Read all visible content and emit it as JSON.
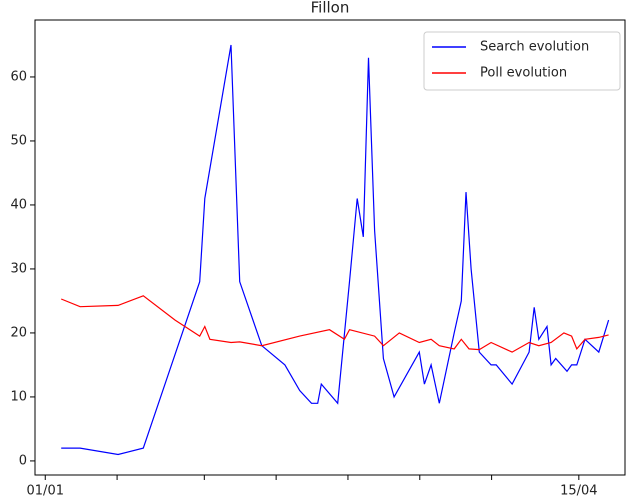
{
  "chart_data": {
    "type": "line",
    "title": "Fillon",
    "legend": "upper right",
    "xlim": [
      -2,
      113
    ],
    "ylim": [
      -2.2,
      68.9
    ],
    "xticks": [
      {
        "value": 0,
        "label": "01/01"
      },
      {
        "value": 14,
        "label": null
      },
      {
        "value": 31,
        "label": null
      },
      {
        "value": 45,
        "label": null
      },
      {
        "value": 59,
        "label": null
      },
      {
        "value": 73,
        "label": null
      },
      {
        "value": 87,
        "label": null
      },
      {
        "value": 104,
        "label": "15/04"
      }
    ],
    "yticks": [
      0,
      10,
      20,
      30,
      40,
      50,
      60
    ],
    "series": [
      {
        "name": "Search evolution",
        "color": "#0000ff",
        "x": [
          3.1,
          6.8,
          14.2,
          19.1,
          30.1,
          31.1,
          36.2,
          37.9,
          42.2,
          46.7,
          49.6,
          51.9,
          53.1,
          53.8,
          57.0,
          59.3,
          60.8,
          62.0,
          63.0,
          64.2,
          65.9,
          68.0,
          72.9,
          73.9,
          75.2,
          76.8,
          79.7,
          81.1,
          82.0,
          83.0,
          84.6,
          86.9,
          87.9,
          91.0,
          94.3,
          95.3,
          96.2,
          97.8,
          98.6,
          99.5,
          101.7,
          102.6,
          103.6,
          105.2,
          107.9,
          109.8
        ],
        "values": [
          2,
          2,
          1,
          2,
          28,
          41,
          65,
          28,
          18,
          15,
          11,
          9,
          9,
          12,
          9,
          28,
          41,
          35,
          63,
          36,
          16,
          10,
          17,
          12,
          15,
          9,
          20,
          25,
          42,
          30,
          17,
          15,
          15,
          12,
          17,
          24,
          19,
          21,
          15,
          16,
          14,
          15,
          15,
          19,
          17,
          22
        ]
      },
      {
        "name": "Poll evolution",
        "color": "#ff0000",
        "x": [
          3.1,
          6.8,
          14.2,
          19.1,
          25.3,
          30.1,
          31.1,
          32.1,
          36.2,
          37.9,
          42.2,
          49.6,
          55.4,
          58.3,
          59.3,
          64.2,
          65.9,
          69.0,
          72.9,
          75.2,
          76.8,
          79.7,
          81.1,
          82.6,
          84.6,
          86.9,
          91.0,
          94.3,
          96.2,
          98.6,
          101.1,
          102.6,
          103.6,
          105.2,
          107.9,
          109.8
        ],
        "values": [
          25.3,
          24.1,
          24.3,
          25.8,
          22,
          19.5,
          21,
          19,
          18.5,
          18.6,
          18,
          19.5,
          20.5,
          19,
          20.5,
          19.5,
          18,
          20,
          18.5,
          19,
          18,
          17.5,
          19,
          17.5,
          17.4,
          18.5,
          17,
          18.5,
          18,
          18.5,
          20,
          19.5,
          17.5,
          19,
          19.3,
          19.7
        ]
      }
    ]
  }
}
